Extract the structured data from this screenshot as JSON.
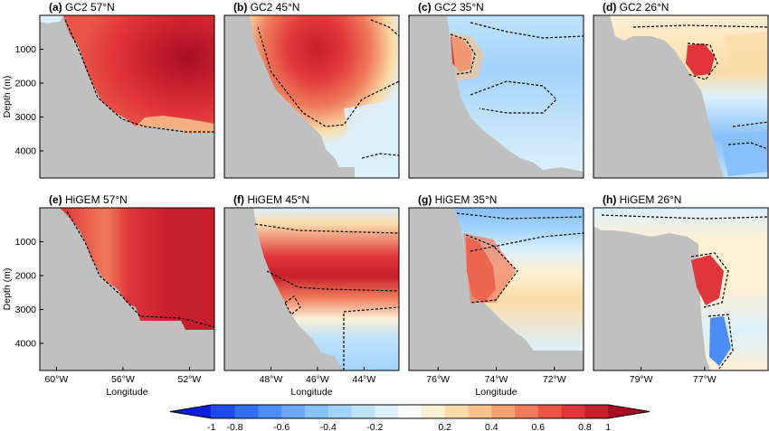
{
  "figure": {
    "colorbar": {
      "ticks": [
        "-1",
        "-0.8",
        "-0.6",
        "-0.4",
        "-0.2",
        "0.2",
        "0.4",
        "0.6",
        "0.8",
        "1"
      ],
      "levels": [
        -1,
        -0.9,
        -0.8,
        -0.7,
        -0.6,
        -0.5,
        -0.4,
        -0.3,
        -0.2,
        -0.1,
        0.1,
        0.2,
        0.3,
        0.4,
        0.5,
        0.6,
        0.7,
        0.8,
        0.9,
        1
      ],
      "colors": [
        "#0a1ee0",
        "#1f49f0",
        "#2f6ef5",
        "#4c8cf6",
        "#6aa8f8",
        "#88c0fa",
        "#a3d3fb",
        "#bfe2fb",
        "#dcf0fc",
        "#ffffff",
        "#fdf0d4",
        "#fbdca8",
        "#f7c28c",
        "#f4a06f",
        "#f07a5a",
        "#ea5548",
        "#e0353a",
        "#c81f2e",
        "#a80e22"
      ]
    },
    "land_color": "#c0c0c0",
    "contour_style": "dashed",
    "panels": [
      {
        "tag": "(a)",
        "model": "GC2",
        "lat": "57°N",
        "yticks": [
          "1000",
          "2000",
          "3000",
          "4000"
        ],
        "ylabel": "Depth (m)",
        "xticks": [],
        "xlabel": ""
      },
      {
        "tag": "(b)",
        "model": "GC2",
        "lat": "45°N",
        "xticks": [],
        "xlabel": ""
      },
      {
        "tag": "(c)",
        "model": "GC2",
        "lat": "35°N",
        "xticks": [],
        "xlabel": ""
      },
      {
        "tag": "(d)",
        "model": "GC2",
        "lat": "26°N",
        "xticks": [],
        "xlabel": ""
      },
      {
        "tag": "(e)",
        "model": "HiGEM",
        "lat": "57°N",
        "yticks": [
          "1000",
          "2000",
          "3000",
          "4000"
        ],
        "ylabel": "Depth (m)",
        "xticks": [
          "60°W",
          "56°W",
          "52°W"
        ],
        "xlabel": "Longitude"
      },
      {
        "tag": "(f)",
        "model": "HiGEM",
        "lat": "45°N",
        "xticks": [
          "48°W",
          "46°W",
          "44°W"
        ],
        "xlabel": "Longitude"
      },
      {
        "tag": "(g)",
        "model": "HiGEM",
        "lat": "35°N",
        "xticks": [
          "76°W",
          "74°W",
          "72°W"
        ],
        "xlabel": "Longitude"
      },
      {
        "tag": "(h)",
        "model": "HiGEM",
        "lat": "26°N",
        "xticks": [
          "79°W",
          "77°W"
        ],
        "xlabel": ""
      }
    ]
  },
  "chart_data": {
    "type": "heatmap",
    "colorbar_range": [
      -1,
      1
    ],
    "ylim": [
      4800,
      0
    ],
    "panels": [
      {
        "panel": "(a)",
        "xlim": [
          61,
          50.5
        ],
        "yticks": [
          1000,
          2000,
          3000,
          4000
        ],
        "xticks": [],
        "core_depth": 1400,
        "core_value": 0.95,
        "sign": "positive"
      },
      {
        "panel": "(b)",
        "xlim": [
          50,
          42.5
        ],
        "yticks": [],
        "xticks": [],
        "core_depth": 900,
        "core_value": 0.85,
        "sign": "positive"
      },
      {
        "panel": "(c)",
        "xlim": [
          77,
          71
        ],
        "yticks": [],
        "xticks": [],
        "core_depth": 1200,
        "core_value": 0.8,
        "sign": "mixed"
      },
      {
        "panel": "(d)",
        "xlim": [
          80.5,
          75
        ],
        "yticks": [],
        "xticks": [],
        "core_depth": 1300,
        "core_value": 0.85,
        "sign": "mixed"
      },
      {
        "panel": "(e)",
        "xlim": [
          61,
          50.5
        ],
        "yticks": [
          1000,
          2000,
          3000,
          4000
        ],
        "xticks": [
          -60,
          -56,
          -52
        ],
        "core_depth": 1600,
        "core_value": 0.9,
        "sign": "positive"
      },
      {
        "panel": "(f)",
        "xlim": [
          50,
          42.5
        ],
        "yticks": [],
        "xticks": [
          -48,
          -46,
          -44
        ],
        "core_depth": 1700,
        "core_value": 0.85,
        "sign": "positive"
      },
      {
        "panel": "(g)",
        "xlim": [
          77,
          71
        ],
        "yticks": [],
        "xticks": [
          -76,
          -74,
          -72
        ],
        "core_depth": 2100,
        "core_value": 0.75,
        "sign": "mixed"
      },
      {
        "panel": "(h)",
        "xlim": [
          80.5,
          75
        ],
        "yticks": [],
        "xticks": [
          -79,
          -77
        ],
        "core_depth": 2300,
        "core_value": 0.65,
        "sign": "mixed"
      }
    ]
  }
}
